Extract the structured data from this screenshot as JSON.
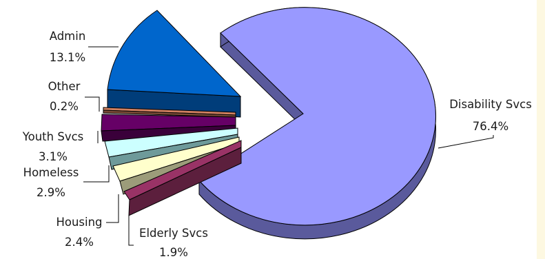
{
  "chart_data": {
    "type": "pie",
    "style": "3d-exploded",
    "slices": [
      {
        "label": "Disability Svcs",
        "value": 76.4,
        "value_label": "76.4%",
        "color": "#9999ff",
        "side_color": "#5a5a9c"
      },
      {
        "label": "Elderly Svcs",
        "value": 1.9,
        "value_label": "1.9%",
        "color": "#993366",
        "side_color": "#5c1f3d"
      },
      {
        "label": "Housing",
        "value": 2.4,
        "value_label": "2.4%",
        "color": "#ffffcc",
        "side_color": "#9c9c7a"
      },
      {
        "label": "Homeless",
        "value": 2.9,
        "value_label": "2.9%",
        "color": "#ccffff",
        "side_color": "#6e9a9a"
      },
      {
        "label": "Youth Svcs",
        "value": 3.1,
        "value_label": "3.1%",
        "color": "#660066",
        "side_color": "#3a003a"
      },
      {
        "label": "Other",
        "value": 0.2,
        "value_label": "0.2%",
        "color": "#d08060",
        "side_color": "#7a4a36"
      },
      {
        "label": "Admin",
        "value": 13.1,
        "value_label": "13.1%",
        "color": "#0066cc",
        "side_color": "#003d7a"
      }
    ]
  }
}
